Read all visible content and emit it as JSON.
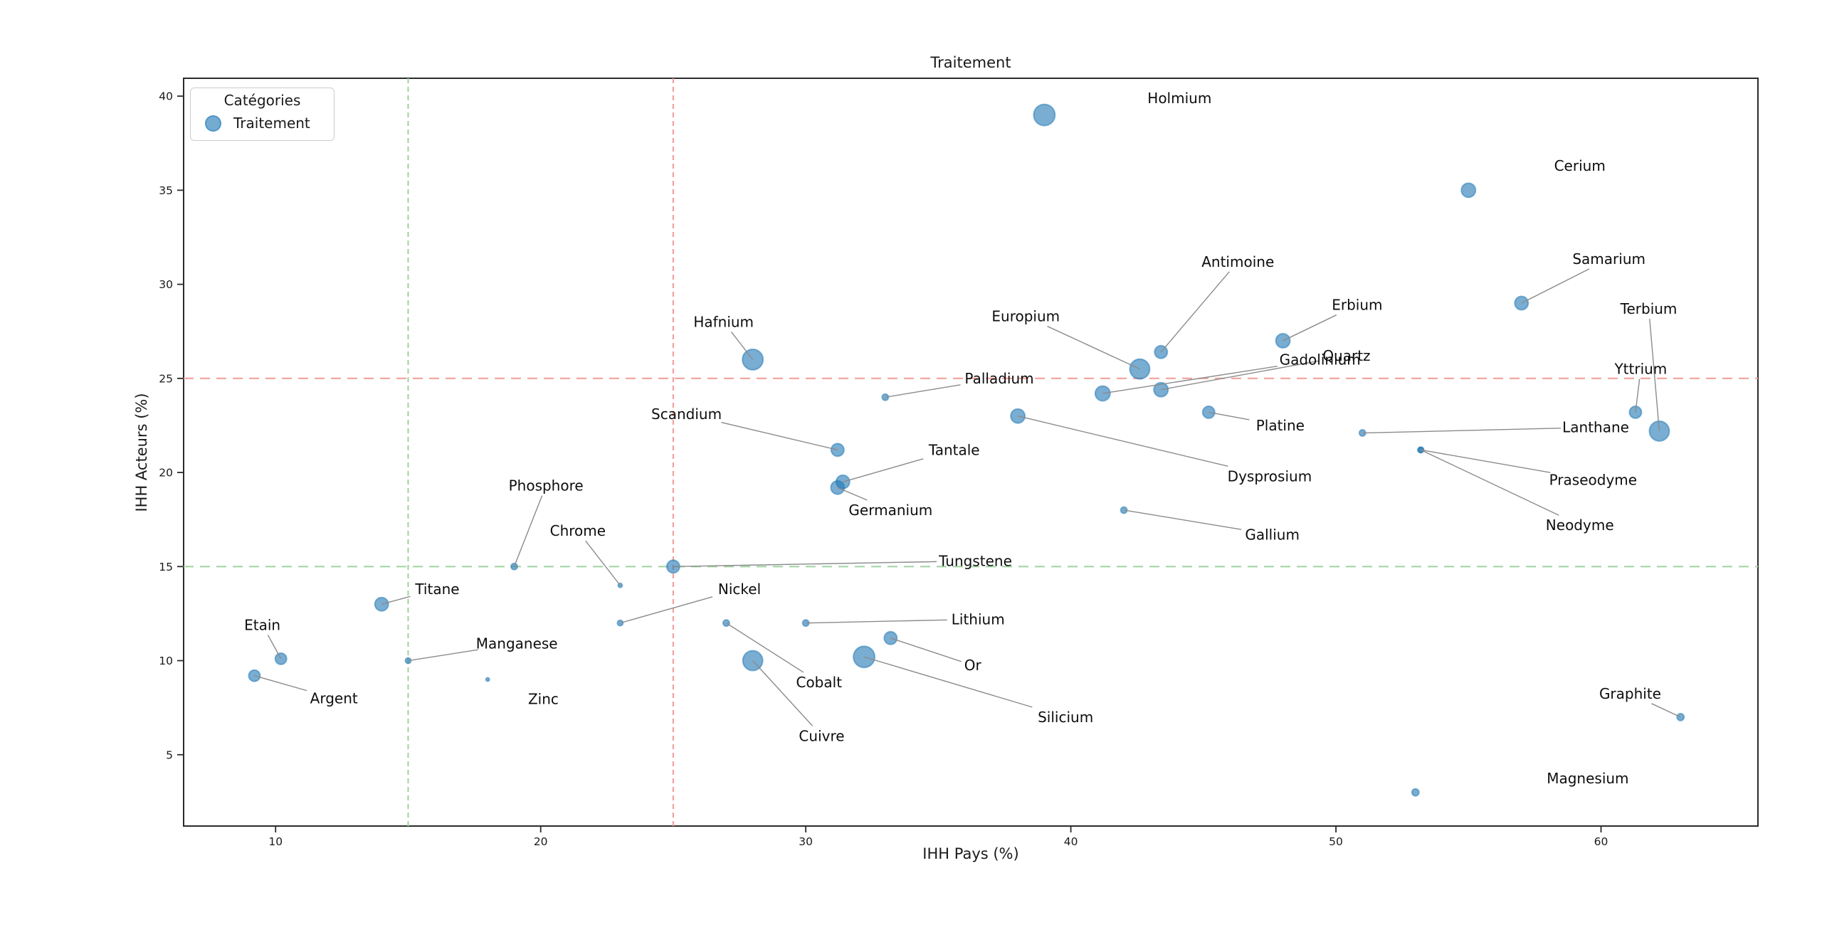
{
  "title": "Traitement",
  "legend": {
    "title": "Catégories",
    "items": [
      {
        "label": "Traitement",
        "color": "#1f77b4"
      }
    ]
  },
  "axes": {
    "x": {
      "label": "IHH Pays (%)",
      "min": 6.53,
      "max": 65.92,
      "ticks": [
        10,
        20,
        30,
        40,
        50,
        60
      ]
    },
    "y": {
      "label": "IHH Acteurs (%)",
      "min": 1.21,
      "max": 40.95,
      "ticks": [
        5,
        10,
        15,
        20,
        25,
        30,
        35,
        40
      ]
    }
  },
  "reference_lines": [
    {
      "axis": "y",
      "value": 25,
      "color": "#F2A29D",
      "style": "dashed"
    },
    {
      "axis": "y",
      "value": 15,
      "color": "#A5D6A3",
      "style": "dashed"
    },
    {
      "axis": "x",
      "value": 25,
      "color": "#F2A29D",
      "style": "dashed"
    },
    {
      "axis": "x",
      "value": 15,
      "color": "#A5D6A3",
      "style": "dashed"
    }
  ],
  "colors": {
    "point_fill": "rgba(31,119,180,0.6)",
    "point_edge": "rgba(31,119,180,0.5)",
    "leader_line": "#8b8b8b",
    "frame": "#2b2b2b",
    "tick_text": "#1a1a1a",
    "label_text": "#0d0d0d"
  },
  "chart_data": {
    "type": "scatter",
    "series": "Traitement",
    "title": "Traitement",
    "xlabel": "IHH Pays (%)",
    "ylabel": "IHH Acteurs (%)",
    "xlim": [
      6.53,
      65.92
    ],
    "ylim": [
      1.21,
      40.95
    ],
    "points": [
      {
        "label": "Holmium",
        "x": 39.0,
        "y": 39.0,
        "r": 15,
        "lx": 44.1,
        "ly": 39.9,
        "line": false
      },
      {
        "label": "Cerium",
        "x": 55.0,
        "y": 35.0,
        "r": 10,
        "lx": 59.2,
        "ly": 36.3,
        "line": false
      },
      {
        "label": "Samarium",
        "x": 57.0,
        "y": 29.0,
        "r": 9.5,
        "lx": 60.3,
        "ly": 31.35,
        "line": true
      },
      {
        "label": "Antimoine",
        "x": 43.4,
        "y": 26.4,
        "r": 9,
        "lx": 46.3,
        "ly": 31.2,
        "line": true
      },
      {
        "label": "Erbium",
        "x": 48.0,
        "y": 27.0,
        "r": 10,
        "lx": 50.8,
        "ly": 28.9,
        "line": true
      },
      {
        "label": "Terbium",
        "x": 62.2,
        "y": 22.2,
        "r": 14,
        "lx": 61.8,
        "ly": 28.7,
        "line": true
      },
      {
        "label": "Hafnium",
        "x": 28.0,
        "y": 26.0,
        "r": 14.5,
        "lx": 26.9,
        "ly": 28.0,
        "line": true
      },
      {
        "label": "Europium",
        "x": 42.6,
        "y": 25.5,
        "r": 14,
        "lx": 38.3,
        "ly": 28.3,
        "line": true
      },
      {
        "label": "Quartz",
        "x": 43.4,
        "y": 24.4,
        "r": 10,
        "lx": 50.4,
        "ly": 26.2,
        "line": true
      },
      {
        "label": "Gadolinium",
        "x": 41.2,
        "y": 24.2,
        "r": 10.5,
        "lx": 49.4,
        "ly": 26.0,
        "line": true
      },
      {
        "label": "Yttrium",
        "x": 61.3,
        "y": 23.2,
        "r": 8.5,
        "lx": 61.5,
        "ly": 25.5,
        "line": true
      },
      {
        "label": "Palladium",
        "x": 33.0,
        "y": 24.0,
        "r": 4.5,
        "lx": 37.3,
        "ly": 25.0,
        "line": true
      },
      {
        "label": "Platine",
        "x": 45.2,
        "y": 23.2,
        "r": 8.5,
        "lx": 47.9,
        "ly": 22.5,
        "line": true
      },
      {
        "label": "Scandium",
        "x": 31.2,
        "y": 21.2,
        "r": 9,
        "lx": 25.5,
        "ly": 23.1,
        "line": true
      },
      {
        "label": "Lanthane",
        "x": 51.0,
        "y": 22.1,
        "r": 4.5,
        "lx": 59.8,
        "ly": 22.4,
        "line": true
      },
      {
        "label": "Dysprosium",
        "x": 38.0,
        "y": 23.0,
        "r": 10,
        "lx": 47.5,
        "ly": 19.8,
        "line": true
      },
      {
        "label": "Praseodyme",
        "x": 53.2,
        "y": 21.2,
        "r": 4,
        "lx": 59.7,
        "ly": 19.6,
        "line": true
      },
      {
        "label": "Neodyme",
        "x": 53.2,
        "y": 21.2,
        "r": 4,
        "lx": 59.2,
        "ly": 17.2,
        "line": true
      },
      {
        "label": "Tantale",
        "x": 31.4,
        "y": 19.5,
        "r": 9.5,
        "lx": 35.6,
        "ly": 21.2,
        "line": true
      },
      {
        "label": "Germanium",
        "x": 31.2,
        "y": 19.2,
        "r": 9.5,
        "lx": 33.2,
        "ly": 18.0,
        "line": true
      },
      {
        "label": "Gallium",
        "x": 42.0,
        "y": 18.0,
        "r": 4.5,
        "lx": 47.6,
        "ly": 16.7,
        "line": true
      },
      {
        "label": "Phosphore",
        "x": 19.0,
        "y": 15.0,
        "r": 4.5,
        "lx": 20.2,
        "ly": 19.3,
        "line": true
      },
      {
        "label": "Tungstene",
        "x": 25.0,
        "y": 15.0,
        "r": 9,
        "lx": 36.4,
        "ly": 15.3,
        "line": true
      },
      {
        "label": "Chrome",
        "x": 23.0,
        "y": 14.0,
        "r": 3,
        "lx": 21.4,
        "ly": 16.9,
        "line": true
      },
      {
        "label": "Titane",
        "x": 14.0,
        "y": 13.0,
        "r": 9.5,
        "lx": 16.1,
        "ly": 13.8,
        "line": true
      },
      {
        "label": "Nickel",
        "x": 23.0,
        "y": 12.0,
        "r": 4,
        "lx": 27.5,
        "ly": 13.8,
        "line": true
      },
      {
        "label": "Lithium",
        "x": 30.0,
        "y": 12.0,
        "r": 4.5,
        "lx": 36.5,
        "ly": 12.2,
        "line": true
      },
      {
        "label": "Cobalt",
        "x": 27.0,
        "y": 12.0,
        "r": 4.5,
        "lx": 30.5,
        "ly": 8.85,
        "line": true
      },
      {
        "label": "Or",
        "x": 33.2,
        "y": 11.2,
        "r": 9,
        "lx": 36.3,
        "ly": 9.75,
        "line": true
      },
      {
        "label": "Etain",
        "x": 10.2,
        "y": 10.1,
        "r": 8,
        "lx": 9.5,
        "ly": 11.9,
        "line": true
      },
      {
        "label": "Silicium",
        "x": 32.2,
        "y": 10.2,
        "r": 15,
        "lx": 39.8,
        "ly": 7.0,
        "line": true
      },
      {
        "label": "Cuivre",
        "x": 28.0,
        "y": 10.0,
        "r": 14,
        "lx": 30.6,
        "ly": 6.0,
        "line": true
      },
      {
        "label": "Manganese",
        "x": 15.0,
        "y": 10.0,
        "r": 4,
        "lx": 19.1,
        "ly": 10.9,
        "line": true
      },
      {
        "label": "Argent",
        "x": 9.2,
        "y": 9.2,
        "r": 8,
        "lx": 12.2,
        "ly": 8.0,
        "line": true
      },
      {
        "label": "Zinc",
        "x": 18.0,
        "y": 9.0,
        "r": 2.5,
        "lx": 20.1,
        "ly": 7.95,
        "line": false
      },
      {
        "label": "Graphite",
        "x": 63.0,
        "y": 7.0,
        "r": 5,
        "lx": 61.1,
        "ly": 8.25,
        "line": true
      },
      {
        "label": "Magnesium",
        "x": 53.0,
        "y": 3.0,
        "r": 5,
        "lx": 59.5,
        "ly": 3.75,
        "line": false
      }
    ]
  }
}
